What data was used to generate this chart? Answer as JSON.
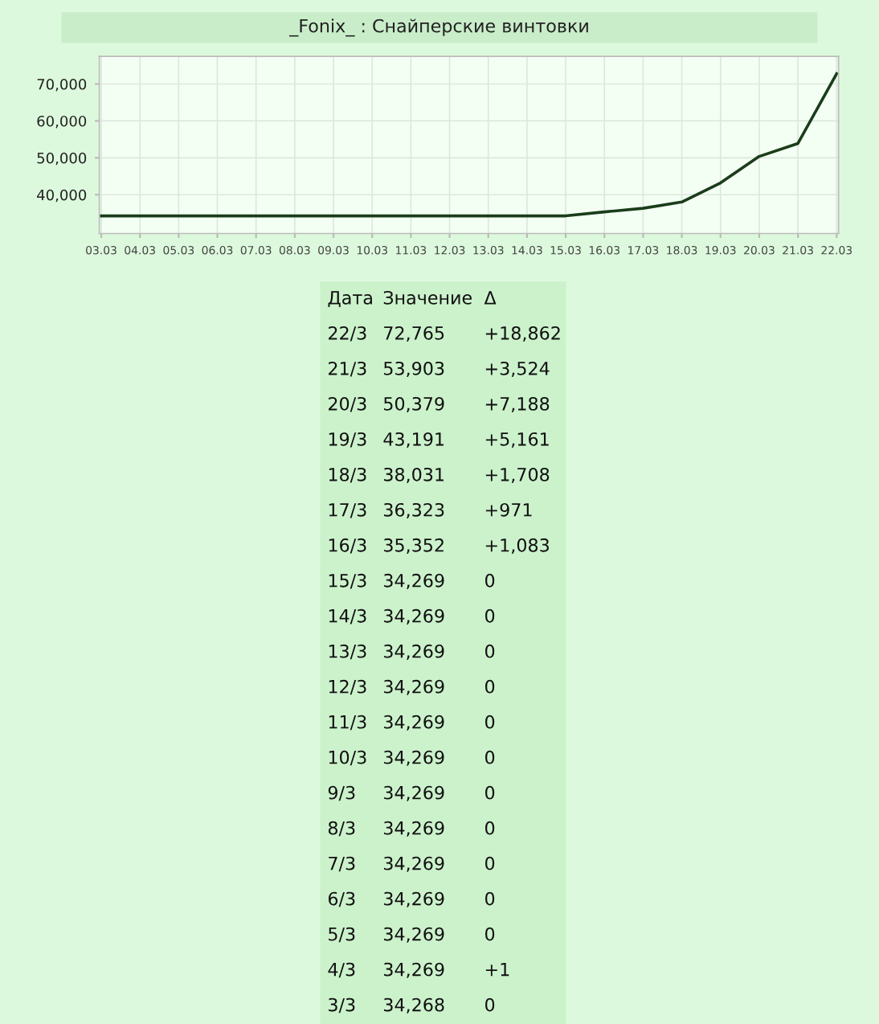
{
  "chart_data": {
    "type": "line",
    "title": "_Fonix_ : Снайперские винтовки",
    "categories": [
      "03.03",
      "04.03",
      "05.03",
      "06.03",
      "07.03",
      "08.03",
      "09.03",
      "10.03",
      "11.03",
      "12.03",
      "13.03",
      "14.03",
      "15.03",
      "16.03",
      "17.03",
      "18.03",
      "19.03",
      "20.03",
      "21.03",
      "22.03"
    ],
    "series": [
      {
        "color": "#1a3d1a",
        "values": [
          34268,
          34269,
          34269,
          34269,
          34269,
          34269,
          34269,
          34269,
          34269,
          34269,
          34269,
          34269,
          34269,
          35352,
          36323,
          38031,
          43191,
          50379,
          53903,
          72765
        ]
      }
    ],
    "value_labels": [
      "34,268",
      "34,269",
      "34,269",
      "34,269",
      "34,269",
      "34,269",
      "34,269",
      "34,269",
      "34,269",
      "34,269",
      "34,269",
      "34,269",
      "34,269",
      "35,352",
      "36,323",
      "38,031",
      "43,191",
      "50,379",
      "53,903",
      "72,765"
    ],
    "ylim": [
      29500,
      77500
    ],
    "yticks": [
      {
        "value": 40000,
        "label": "40,000"
      },
      {
        "value": 50000,
        "label": "50,000"
      },
      {
        "value": 60000,
        "label": "60,000"
      },
      {
        "value": 70000,
        "label": "70,000"
      }
    ],
    "grid": true,
    "marker": "none",
    "line_style": "solid",
    "annotations": [
      "Дата",
      "Значение",
      "Δ",
      "22/3",
      "+18,862",
      "21/3",
      "+3,524",
      "20/3",
      "+7,188",
      "19/3",
      "+5,161",
      "18/3",
      "+1,708",
      "17/3",
      "+971",
      "16/3",
      "+1,083",
      "15/3",
      "0",
      "14/3",
      "0",
      "13/3",
      "0",
      "12/3",
      "0",
      "11/3",
      "0",
      "10/3",
      "0",
      "9/3",
      "0",
      "8/3",
      "0",
      "7/3",
      "0",
      "6/3",
      "0",
      "5/3",
      "0",
      "4/3",
      "+1",
      "3/3",
      "0"
    ]
  }
}
